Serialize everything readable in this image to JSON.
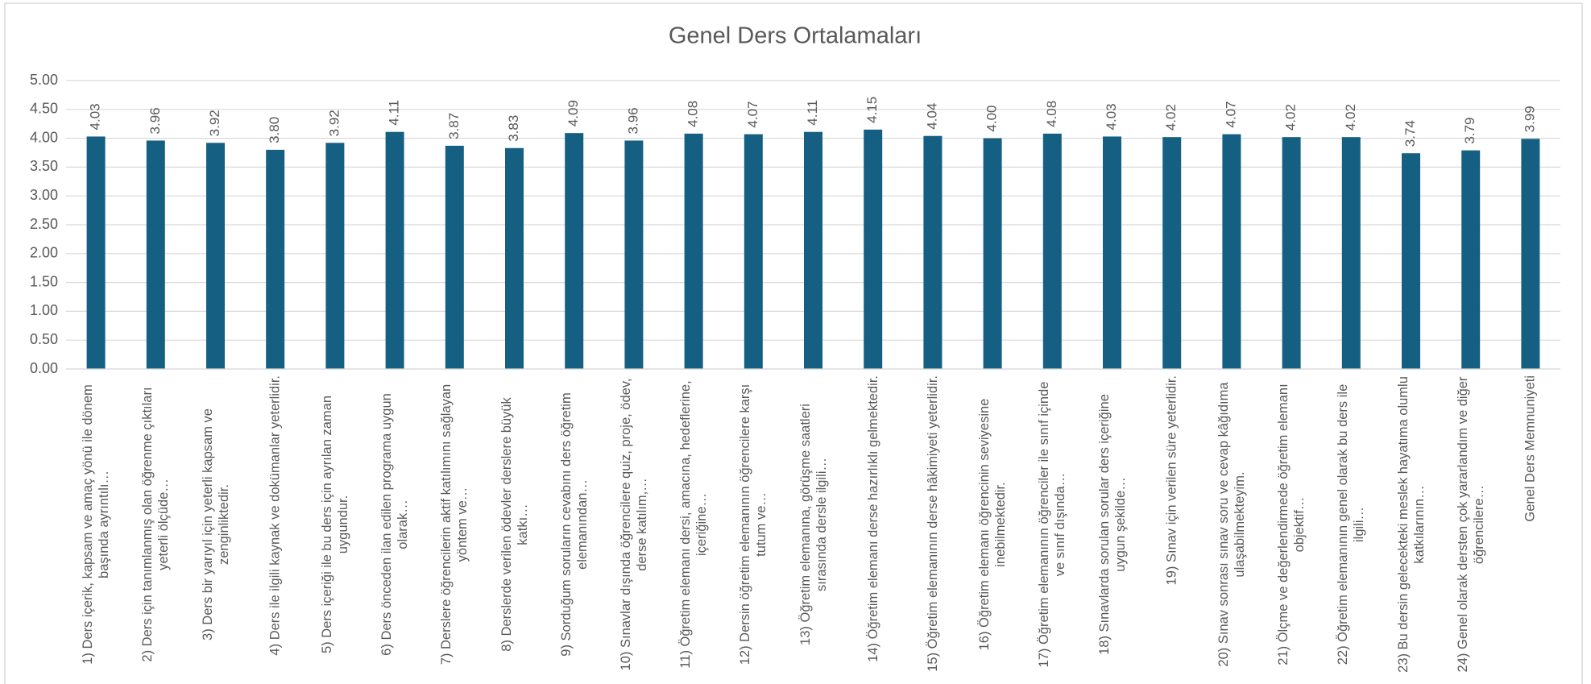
{
  "chart_data": {
    "type": "bar",
    "title": "Genel Ders Ortalamaları",
    "categories": [
      "1) Ders içerik, kapsam ve amaç yönü ile dönem başında ayrıntılı…",
      "2) Ders için tanımlanmış olan öğrenme çıktıları yeterli ölçüde…",
      "3) Ders bir yarıyıl için yeterli kapsam ve zenginliktedir.",
      "4) Ders ile ilgili kaynak ve dokümanlar yeterlidir.",
      "5) Ders içeriği ile bu ders için ayrılan zaman uygundur.",
      "6) Ders önceden ilan edilen programa uygun olarak…",
      "7) Derslere öğrencilerin aktif katılımını sağlayan yöntem ve…",
      "8) Derslerde verilen ödevler derslere büyük katkı…",
      "9) Sorduğum soruların cevabını ders öğretim elemanından…",
      "10) Sınavlar dışında öğrencilere quiz, proje, ödev, derse katılım,…",
      "11) Öğretim elemanı dersi, amacına, hedeflerine, içeriğine…",
      "12) Dersin öğretim elemanının öğrencilere karşı tutum ve…",
      "13) Öğretim elemanına, görüşme saatleri sırasında dersle ilgili…",
      "14) Öğretim elemanı derse hazırlıklı gelmektedir.",
      "15) Öğretim elemanının derse hâkimiyeti yeterlidir.",
      "16) Öğretim elemanı öğrencinin seviyesine inebilmektedir.",
      "17) Öğretim elemanının öğrenciler ile sınıf içinde ve sınıf dışında…",
      "18) Sınavlarda sorulan sorular ders içeriğine uygun şekilde…",
      "19) Sınav için verilen süre yeterlidir.",
      "20) Sınav sonrası sınav soru ve cevap kâğıdıma ulaşabilmekteyim.",
      "21) Ölçme ve değerlendirmede öğretim elemanı objektif…",
      "22) Öğretim elemanının genel olarak bu ders ile ilgili…",
      "23) Bu dersin gelecekteki meslek hayatıma olumlu katkılarının…",
      "24) Genel olarak dersten çok yararlandım ve diğer öğrencilere…",
      "Genel Ders Memnuniyeti"
    ],
    "values": [
      4.03,
      3.96,
      3.92,
      3.8,
      3.92,
      4.11,
      3.87,
      3.83,
      4.09,
      3.96,
      4.08,
      4.07,
      4.11,
      4.15,
      4.04,
      4.0,
      4.08,
      4.03,
      4.02,
      4.07,
      4.02,
      4.02,
      3.74,
      3.79,
      3.99
    ],
    "value_labels": [
      "4.03",
      "3.96",
      "3.92",
      "3.80",
      "3.92",
      "4.11",
      "3.87",
      "3.83",
      "4.09",
      "3.96",
      "4.08",
      "4.07",
      "4.11",
      "4.15",
      "4.04",
      "4.00",
      "4.08",
      "4.03",
      "4.02",
      "4.07",
      "4.02",
      "4.02",
      "3.74",
      "3.79",
      "3.99"
    ],
    "color": "#156082",
    "ylim": [
      0,
      5
    ],
    "yticks": [
      {
        "value": 0,
        "label": "0.00"
      },
      {
        "value": 0.5,
        "label": "0.50"
      },
      {
        "value": 1,
        "label": "1.00"
      },
      {
        "value": 1.5,
        "label": "1.50"
      },
      {
        "value": 2,
        "label": "2.00"
      },
      {
        "value": 2.5,
        "label": "2.50"
      },
      {
        "value": 3,
        "label": "3.00"
      },
      {
        "value": 3.5,
        "label": "3.50"
      },
      {
        "value": 4,
        "label": "4.00"
      },
      {
        "value": 4.5,
        "label": "4.50"
      },
      {
        "value": 5,
        "label": "5.00"
      }
    ],
    "grid": true
  }
}
